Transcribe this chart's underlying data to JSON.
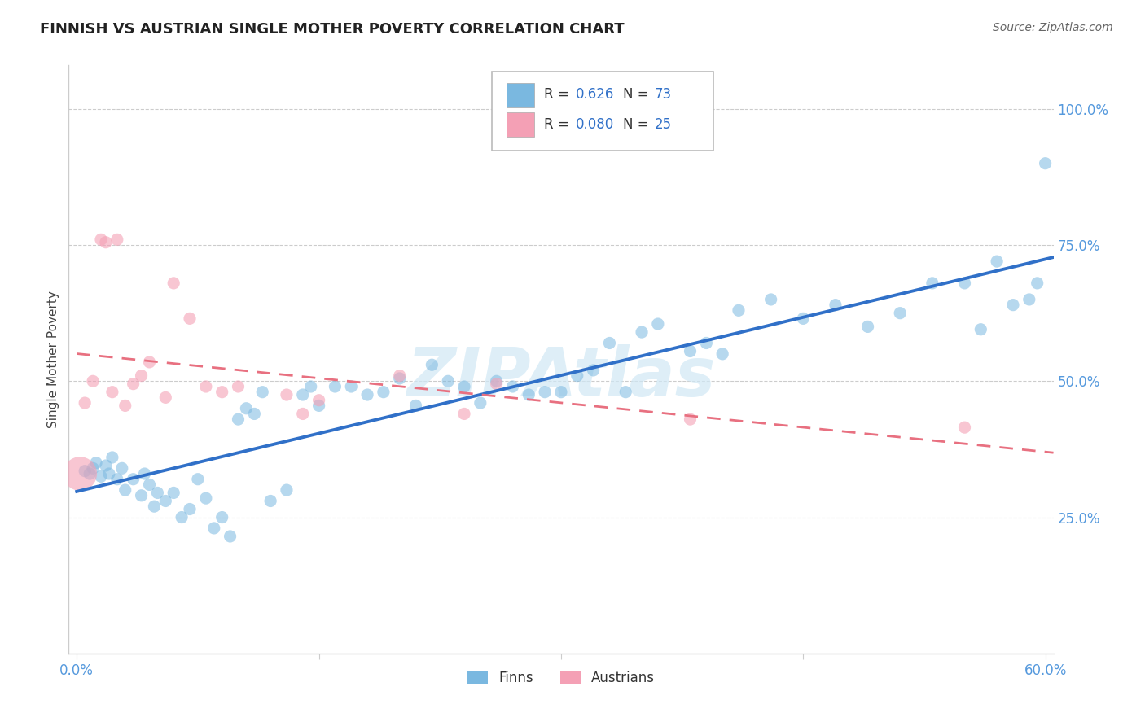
{
  "title": "FINNISH VS AUSTRIAN SINGLE MOTHER POVERTY CORRELATION CHART",
  "source": "Source: ZipAtlas.com",
  "ylabel": "Single Mother Poverty",
  "xlim_min": -0.005,
  "xlim_max": 0.605,
  "ylim_min": 0.0,
  "ylim_max": 1.08,
  "xtick_positions": [
    0.0,
    0.15,
    0.3,
    0.45,
    0.6
  ],
  "xticklabels": [
    "0.0%",
    "",
    "",
    "",
    "60.0%"
  ],
  "ytick_right_labels": [
    "100.0%",
    "75.0%",
    "50.0%",
    "25.0%"
  ],
  "ytick_right_values": [
    1.0,
    0.75,
    0.5,
    0.25
  ],
  "grid_color": "#cccccc",
  "background_color": "#ffffff",
  "finn_color": "#7ab8e0",
  "austrian_color": "#f4a0b5",
  "finn_line_color": "#3070c8",
  "austrian_line_color": "#e87080",
  "R_finn": 0.626,
  "N_finn": 73,
  "R_austrian": 0.08,
  "N_austrian": 25,
  "tick_color": "#5599dd",
  "legend_text_color": "#333333",
  "legend_value_color": "#3070c8",
  "watermark_text": "ZIPAtlas",
  "watermark_color": "#d0e8f5",
  "finn_x": [
    0.005,
    0.008,
    0.01,
    0.012,
    0.015,
    0.018,
    0.02,
    0.022,
    0.025,
    0.028,
    0.03,
    0.035,
    0.04,
    0.042,
    0.045,
    0.048,
    0.05,
    0.055,
    0.06,
    0.065,
    0.07,
    0.075,
    0.08,
    0.085,
    0.09,
    0.095,
    0.1,
    0.105,
    0.11,
    0.115,
    0.12,
    0.13,
    0.14,
    0.145,
    0.15,
    0.16,
    0.17,
    0.18,
    0.19,
    0.2,
    0.21,
    0.22,
    0.23,
    0.24,
    0.25,
    0.26,
    0.27,
    0.28,
    0.29,
    0.3,
    0.31,
    0.32,
    0.33,
    0.34,
    0.35,
    0.36,
    0.38,
    0.39,
    0.4,
    0.41,
    0.43,
    0.45,
    0.47,
    0.49,
    0.51,
    0.53,
    0.55,
    0.56,
    0.57,
    0.58,
    0.59,
    0.595,
    0.6
  ],
  "finn_y": [
    0.335,
    0.33,
    0.34,
    0.35,
    0.325,
    0.345,
    0.33,
    0.36,
    0.32,
    0.34,
    0.3,
    0.32,
    0.29,
    0.33,
    0.31,
    0.27,
    0.295,
    0.28,
    0.295,
    0.25,
    0.265,
    0.32,
    0.285,
    0.23,
    0.25,
    0.215,
    0.43,
    0.45,
    0.44,
    0.48,
    0.28,
    0.3,
    0.475,
    0.49,
    0.455,
    0.49,
    0.49,
    0.475,
    0.48,
    0.505,
    0.455,
    0.53,
    0.5,
    0.49,
    0.46,
    0.5,
    0.49,
    0.475,
    0.48,
    0.48,
    0.51,
    0.52,
    0.57,
    0.48,
    0.59,
    0.605,
    0.555,
    0.57,
    0.55,
    0.63,
    0.65,
    0.615,
    0.64,
    0.6,
    0.625,
    0.68,
    0.68,
    0.595,
    0.72,
    0.64,
    0.65,
    0.68,
    0.9
  ],
  "finn_sizes": [
    120,
    120,
    120,
    120,
    120,
    120,
    120,
    120,
    120,
    120,
    120,
    120,
    120,
    120,
    120,
    120,
    120,
    120,
    120,
    120,
    120,
    120,
    120,
    120,
    120,
    120,
    120,
    120,
    120,
    120,
    120,
    120,
    120,
    120,
    120,
    120,
    120,
    120,
    120,
    120,
    120,
    120,
    120,
    120,
    120,
    120,
    120,
    120,
    120,
    120,
    120,
    120,
    120,
    120,
    120,
    120,
    120,
    120,
    120,
    120,
    120,
    120,
    120,
    120,
    120,
    120,
    120,
    120,
    120,
    120,
    120,
    120,
    120
  ],
  "austrian_x": [
    0.002,
    0.005,
    0.01,
    0.015,
    0.018,
    0.022,
    0.025,
    0.03,
    0.035,
    0.04,
    0.045,
    0.055,
    0.06,
    0.07,
    0.08,
    0.09,
    0.1,
    0.13,
    0.14,
    0.15,
    0.2,
    0.24,
    0.26,
    0.38,
    0.55
  ],
  "austrian_y": [
    0.33,
    0.46,
    0.5,
    0.76,
    0.755,
    0.48,
    0.76,
    0.455,
    0.495,
    0.51,
    0.535,
    0.47,
    0.68,
    0.615,
    0.49,
    0.48,
    0.49,
    0.475,
    0.44,
    0.465,
    0.51,
    0.44,
    0.495,
    0.43,
    0.415
  ],
  "austrian_sizes": [
    900,
    120,
    120,
    120,
    120,
    120,
    120,
    120,
    120,
    120,
    120,
    120,
    120,
    120,
    120,
    120,
    120,
    120,
    120,
    120,
    120,
    120,
    120,
    120,
    120
  ]
}
